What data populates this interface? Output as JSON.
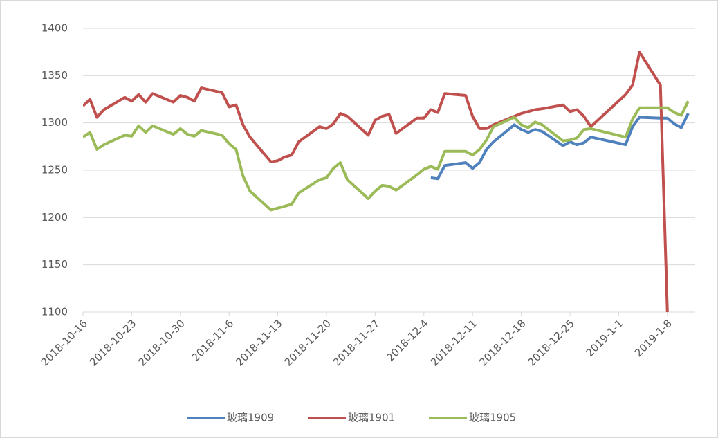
{
  "chart_data": {
    "type": "line",
    "x": [
      "2018-10-16",
      "2018-10-17",
      "2018-10-18",
      "2018-10-19",
      "2018-10-22",
      "2018-10-23",
      "2018-10-24",
      "2018-10-25",
      "2018-10-26",
      "2018-10-29",
      "2018-10-30",
      "2018-10-31",
      "2018-11-1",
      "2018-11-2",
      "2018-11-5",
      "2018-11-6",
      "2018-11-7",
      "2018-11-8",
      "2018-11-9",
      "2018-11-12",
      "2018-11-13",
      "2018-11-14",
      "2018-11-15",
      "2018-11-16",
      "2018-11-19",
      "2018-11-20",
      "2018-11-21",
      "2018-11-22",
      "2018-11-23",
      "2018-11-26",
      "2018-11-27",
      "2018-11-28",
      "2018-11-29",
      "2018-11-30",
      "2018-12-3",
      "2018-12-4",
      "2018-12-5",
      "2018-12-6",
      "2018-12-7",
      "2018-12-10",
      "2018-12-11",
      "2018-12-12",
      "2018-12-13",
      "2018-12-14",
      "2018-12-17",
      "2018-12-18",
      "2018-12-19",
      "2018-12-20",
      "2018-12-21",
      "2018-12-24",
      "2018-12-25",
      "2018-12-26",
      "2018-12-27",
      "2018-12-28",
      "2019-1-2",
      "2019-1-3",
      "2019-1-4",
      "2019-1-7",
      "2019-1-8",
      "2019-1-9",
      "2019-1-10",
      "2019-1-11"
    ],
    "series": [
      {
        "name": "玻璃1909",
        "color": "#4f81bd",
        "values": [
          null,
          null,
          null,
          null,
          null,
          null,
          null,
          null,
          null,
          null,
          null,
          null,
          null,
          null,
          null,
          null,
          null,
          null,
          null,
          null,
          null,
          null,
          null,
          null,
          null,
          null,
          null,
          null,
          null,
          null,
          null,
          null,
          null,
          null,
          null,
          null,
          1242,
          1241,
          1255,
          1258,
          1252,
          1258,
          1272,
          1280,
          1298,
          1293,
          1290,
          1293,
          1291,
          1276,
          1280,
          1277,
          1279,
          1285,
          1277,
          1296,
          1306,
          1305,
          1305,
          1299,
          1295,
          1310
        ]
      },
      {
        "name": "玻璃1901",
        "color": "#c0504d",
        "values": [
          1318,
          1325,
          1306,
          1314,
          1327,
          1323,
          1330,
          1322,
          1331,
          1322,
          1329,
          1327,
          1323,
          1337,
          1332,
          1317,
          1319,
          1298,
          1285,
          1259,
          1260,
          1264,
          1266,
          1280,
          1296,
          1294,
          1299,
          1310,
          1307,
          1287,
          1303,
          1307,
          1309,
          1289,
          1305,
          1305,
          1314,
          1311,
          1331,
          1329,
          1307,
          1294,
          1294,
          1298,
          1307,
          1310,
          1312,
          1314,
          1315,
          1319,
          1312,
          1314,
          1307,
          1296,
          1330,
          1340,
          1375,
          1340,
          1100,
          null,
          null,
          null
        ]
      },
      {
        "name": "玻璃1905",
        "color": "#9bbb59",
        "values": [
          1285,
          1290,
          1272,
          1277,
          1287,
          1286,
          1297,
          1290,
          1297,
          1288,
          1294,
          1288,
          1286,
          1292,
          1287,
          1278,
          1272,
          1244,
          1228,
          1208,
          1210,
          1212,
          1214,
          1226,
          1240,
          1242,
          1252,
          1258,
          1240,
          1220,
          1228,
          1234,
          1233,
          1229,
          1245,
          1251,
          1254,
          1251,
          1270,
          1270,
          1266,
          1272,
          1282,
          1296,
          1306,
          1298,
          1295,
          1301,
          1298,
          1281,
          1282,
          1284,
          1293,
          1294,
          1285,
          1304,
          1316,
          1316,
          1316,
          1311,
          1308,
          1323
        ]
      }
    ],
    "xlim": [
      "2018-10-16",
      "2019-1-12"
    ],
    "xticks": [
      "2018-10-16",
      "2018-10-23",
      "2018-10-30",
      "2018-11-6",
      "2018-11-13",
      "2018-11-20",
      "2018-11-27",
      "2018-12-4",
      "2018-12-11",
      "2018-12-18",
      "2018-12-25",
      "2019-1-1",
      "2019-1-8"
    ],
    "ylim": [
      1100,
      1400
    ],
    "yticks": [
      1100,
      1150,
      1200,
      1250,
      1300,
      1350,
      1400
    ],
    "grid": true,
    "legend": "bottom"
  }
}
